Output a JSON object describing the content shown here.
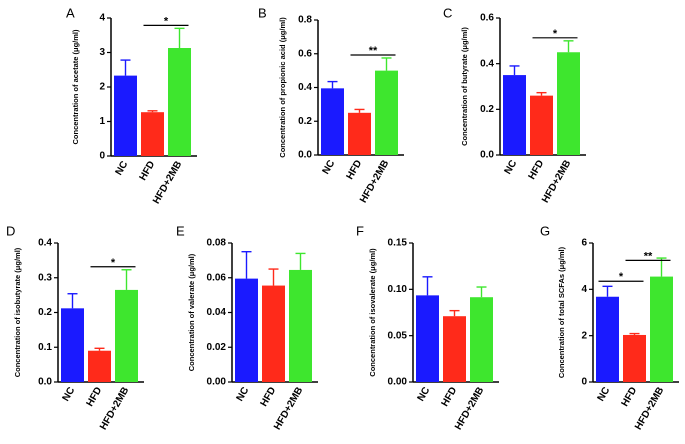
{
  "colors": {
    "NC": "#1a1aff",
    "HFD": "#ff2a1a",
    "HFD+2MB": "#3ee62e"
  },
  "chart_data": [
    {
      "type": "bar",
      "panel": "A",
      "ylabel": "Concentration of acetate (μg/ml)",
      "categories": [
        "NC",
        "HFD",
        "HFD+2MB"
      ],
      "values": [
        2.33,
        1.27,
        3.13
      ],
      "errors": [
        0.45,
        0.04,
        0.57
      ],
      "ylim": [
        0,
        4
      ],
      "yticks": [
        "0",
        "1",
        "2",
        "3",
        "4"
      ],
      "significance": [
        {
          "from": 1,
          "to": 2,
          "label": "*"
        }
      ]
    },
    {
      "type": "bar",
      "panel": "B",
      "ylabel": "Concentration of propionic acid (μg/ml)",
      "categories": [
        "NC",
        "HFD",
        "HFD+2MB"
      ],
      "values": [
        0.395,
        0.25,
        0.5
      ],
      "errors": [
        0.04,
        0.02,
        0.075
      ],
      "ylim": [
        0,
        0.8
      ],
      "yticks": [
        "0.0",
        "0.2",
        "0.4",
        "0.6",
        "0.8"
      ],
      "significance": [
        {
          "from": 1,
          "to": 2,
          "label": "**"
        }
      ]
    },
    {
      "type": "bar",
      "panel": "C",
      "ylabel": "Concentration of butyrate (μg/ml)",
      "categories": [
        "NC",
        "HFD",
        "HFD+2MB"
      ],
      "values": [
        0.35,
        0.26,
        0.45
      ],
      "errors": [
        0.04,
        0.013,
        0.05
      ],
      "ylim": [
        0,
        0.6
      ],
      "yticks": [
        "0.0",
        "0.2",
        "0.4",
        "0.6"
      ],
      "significance": [
        {
          "from": 1,
          "to": 2,
          "label": "*"
        }
      ]
    },
    {
      "type": "bar",
      "panel": "D",
      "ylabel": "Concentration of isobutyrate (μg/ml)",
      "categories": [
        "NC",
        "HFD",
        "HFD+2MB"
      ],
      "values": [
        0.212,
        0.09,
        0.265
      ],
      "errors": [
        0.042,
        0.007,
        0.058
      ],
      "ylim": [
        0,
        0.4
      ],
      "yticks": [
        "0.0",
        "0.1",
        "0.2",
        "0.3",
        "0.4"
      ],
      "significance": [
        {
          "from": 1,
          "to": 2,
          "label": "*"
        }
      ]
    },
    {
      "type": "bar",
      "panel": "E",
      "ylabel": "Concentration of valerate (μg/ml)",
      "categories": [
        "NC",
        "HFD",
        "HFD+2MB"
      ],
      "values": [
        0.0595,
        0.0555,
        0.0645
      ],
      "errors": [
        0.0155,
        0.0095,
        0.0095
      ],
      "ylim": [
        0,
        0.08
      ],
      "yticks": [
        "0.00",
        "0.02",
        "0.04",
        "0.06",
        "0.08"
      ],
      "significance": []
    },
    {
      "type": "bar",
      "panel": "F",
      "ylabel": "Concentration of isovalerate (μg/ml)",
      "categories": [
        "NC",
        "HFD",
        "HFD+2MB"
      ],
      "values": [
        0.0935,
        0.071,
        0.0915
      ],
      "errors": [
        0.02,
        0.006,
        0.011
      ],
      "ylim": [
        0,
        0.15
      ],
      "yticks": [
        "0.00",
        "0.05",
        "0.10",
        "0.15"
      ],
      "significance": []
    },
    {
      "type": "bar",
      "panel": "G",
      "ylabel": "Concentration of total SCFAs (μg/ml)",
      "categories": [
        "NC",
        "HFD",
        "HFD+2MB"
      ],
      "values": [
        3.68,
        2.03,
        4.55
      ],
      "errors": [
        0.45,
        0.06,
        0.8
      ],
      "ylim": [
        0,
        6
      ],
      "yticks": [
        "0",
        "2",
        "4",
        "6"
      ],
      "significance": [
        {
          "from": 0,
          "to": 1,
          "label": "*"
        },
        {
          "from": 1,
          "to": 2,
          "label": "**"
        }
      ]
    }
  ]
}
